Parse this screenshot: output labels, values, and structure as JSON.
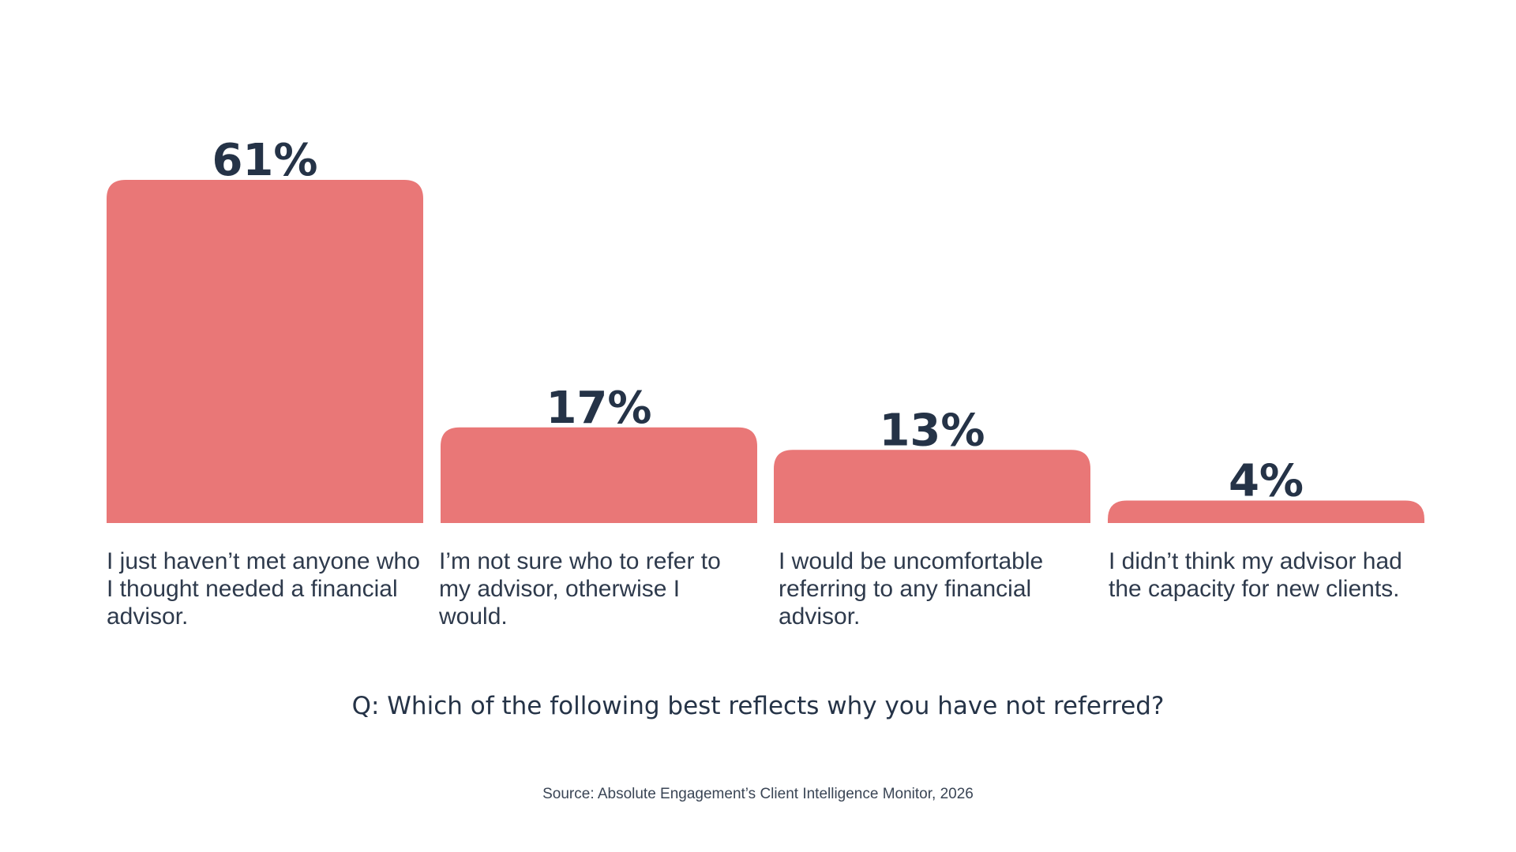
{
  "chart_data": {
    "type": "bar",
    "categories": [
      "I just haven’t met anyone who I thought needed a financial advisor.",
      "I’m not sure who to refer to my advisor, otherwise I would.",
      "I would be uncomfortable referring to any financial advisor.",
      "I didn’t think my advisor had the capacity for new clients."
    ],
    "values": [
      61,
      17,
      13,
      4
    ],
    "value_labels": [
      "61%",
      "17%",
      "13%",
      "4%"
    ],
    "ylim": [
      0,
      61
    ],
    "grid": false,
    "legend": "none",
    "bar_color": "#e97777",
    "label_color": "#253347"
  },
  "question": "Q: Which of the following best reflects why you have not referred?",
  "source": "Source: Absolute Engagement’s Client Intelligence Monitor, 2026"
}
